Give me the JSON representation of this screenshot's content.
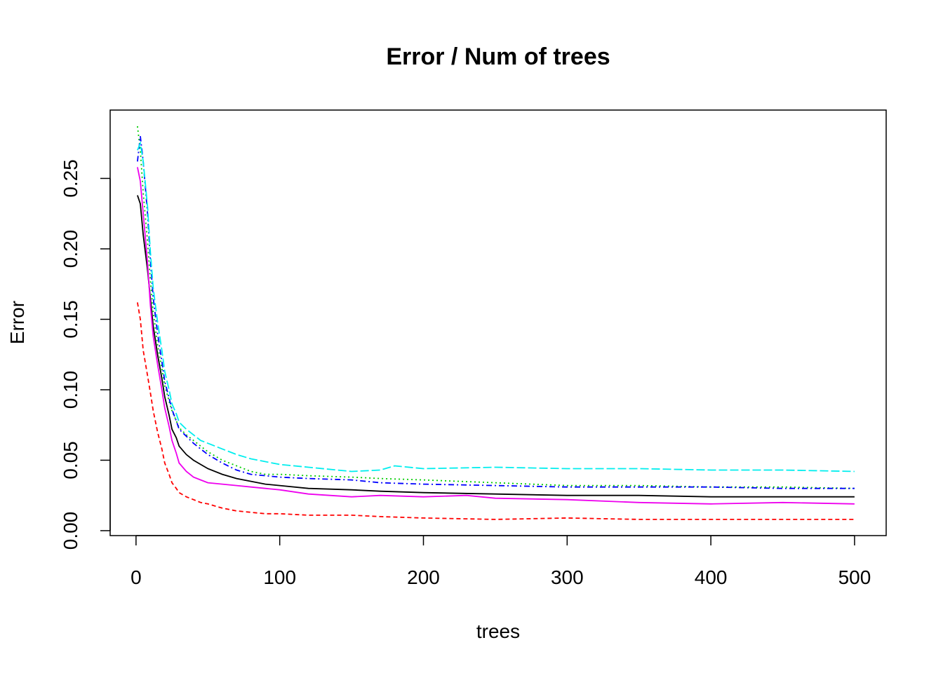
{
  "chart_data": {
    "type": "line",
    "title": "Error / Num of trees",
    "xlabel": "trees",
    "ylabel": "Error",
    "xlim": [
      -18,
      522
    ],
    "ylim": [
      -0.0035,
      0.2985
    ],
    "x_ticks": [
      0,
      100,
      200,
      300,
      400,
      500
    ],
    "y_ticks": [
      0.0,
      0.05,
      0.1,
      0.15,
      0.2,
      0.25
    ],
    "x_tick_labels": [
      "0",
      "100",
      "200",
      "300",
      "400",
      "500"
    ],
    "y_tick_labels": [
      "0.00",
      "0.05",
      "0.10",
      "0.15",
      "0.20",
      "0.25"
    ],
    "grid": false,
    "legend": "none",
    "series": [
      {
        "color": "#000000",
        "dash": "",
        "points": [
          [
            1,
            0.238
          ],
          [
            3,
            0.232
          ],
          [
            5,
            0.21
          ],
          [
            8,
            0.185
          ],
          [
            10,
            0.165
          ],
          [
            12,
            0.145
          ],
          [
            15,
            0.125
          ],
          [
            18,
            0.108
          ],
          [
            20,
            0.095
          ],
          [
            23,
            0.082
          ],
          [
            25,
            0.072
          ],
          [
            28,
            0.066
          ],
          [
            30,
            0.06
          ],
          [
            35,
            0.054
          ],
          [
            40,
            0.05
          ],
          [
            45,
            0.047
          ],
          [
            50,
            0.044
          ],
          [
            60,
            0.04
          ],
          [
            70,
            0.037
          ],
          [
            80,
            0.035
          ],
          [
            90,
            0.033
          ],
          [
            100,
            0.032
          ],
          [
            120,
            0.03
          ],
          [
            150,
            0.029
          ],
          [
            170,
            0.028
          ],
          [
            200,
            0.027
          ],
          [
            250,
            0.026
          ],
          [
            300,
            0.025
          ],
          [
            350,
            0.025
          ],
          [
            400,
            0.024
          ],
          [
            450,
            0.024
          ],
          [
            500,
            0.024
          ]
        ]
      },
      {
        "color": "#ff0000",
        "dash": "6,4",
        "points": [
          [
            1,
            0.162
          ],
          [
            3,
            0.15
          ],
          [
            5,
            0.128
          ],
          [
            8,
            0.11
          ],
          [
            10,
            0.098
          ],
          [
            12,
            0.085
          ],
          [
            15,
            0.07
          ],
          [
            18,
            0.058
          ],
          [
            20,
            0.048
          ],
          [
            23,
            0.04
          ],
          [
            25,
            0.034
          ],
          [
            28,
            0.03
          ],
          [
            30,
            0.027
          ],
          [
            35,
            0.024
          ],
          [
            40,
            0.022
          ],
          [
            45,
            0.02
          ],
          [
            50,
            0.019
          ],
          [
            60,
            0.016
          ],
          [
            70,
            0.014
          ],
          [
            80,
            0.013
          ],
          [
            90,
            0.012
          ],
          [
            100,
            0.012
          ],
          [
            120,
            0.011
          ],
          [
            150,
            0.011
          ],
          [
            170,
            0.01
          ],
          [
            200,
            0.009
          ],
          [
            250,
            0.008
          ],
          [
            300,
            0.009
          ],
          [
            350,
            0.008
          ],
          [
            400,
            0.008
          ],
          [
            450,
            0.008
          ],
          [
            500,
            0.008
          ]
        ]
      },
      {
        "color": "#00cd00",
        "dash": "2,4",
        "points": [
          [
            1,
            0.287
          ],
          [
            3,
            0.27
          ],
          [
            5,
            0.24
          ],
          [
            8,
            0.205
          ],
          [
            10,
            0.178
          ],
          [
            12,
            0.155
          ],
          [
            15,
            0.132
          ],
          [
            18,
            0.115
          ],
          [
            20,
            0.103
          ],
          [
            23,
            0.092
          ],
          [
            25,
            0.085
          ],
          [
            28,
            0.078
          ],
          [
            30,
            0.073
          ],
          [
            35,
            0.068
          ],
          [
            40,
            0.064
          ],
          [
            45,
            0.06
          ],
          [
            50,
            0.056
          ],
          [
            60,
            0.05
          ],
          [
            70,
            0.046
          ],
          [
            80,
            0.042
          ],
          [
            90,
            0.04
          ],
          [
            100,
            0.04
          ],
          [
            120,
            0.039
          ],
          [
            150,
            0.038
          ],
          [
            170,
            0.037
          ],
          [
            200,
            0.036
          ],
          [
            250,
            0.034
          ],
          [
            300,
            0.032
          ],
          [
            350,
            0.032
          ],
          [
            400,
            0.031
          ],
          [
            450,
            0.031
          ],
          [
            500,
            0.03
          ]
        ]
      },
      {
        "color": "#0000ff",
        "dash": "8,4,2,4",
        "points": [
          [
            1,
            0.262
          ],
          [
            3,
            0.28
          ],
          [
            5,
            0.262
          ],
          [
            8,
            0.225
          ],
          [
            10,
            0.192
          ],
          [
            12,
            0.165
          ],
          [
            15,
            0.14
          ],
          [
            18,
            0.12
          ],
          [
            20,
            0.106
          ],
          [
            23,
            0.094
          ],
          [
            25,
            0.086
          ],
          [
            28,
            0.078
          ],
          [
            30,
            0.072
          ],
          [
            35,
            0.067
          ],
          [
            40,
            0.062
          ],
          [
            45,
            0.058
          ],
          [
            50,
            0.054
          ],
          [
            60,
            0.048
          ],
          [
            70,
            0.043
          ],
          [
            80,
            0.04
          ],
          [
            90,
            0.039
          ],
          [
            100,
            0.038
          ],
          [
            120,
            0.037
          ],
          [
            150,
            0.036
          ],
          [
            170,
            0.034
          ],
          [
            200,
            0.033
          ],
          [
            250,
            0.032
          ],
          [
            300,
            0.031
          ],
          [
            350,
            0.031
          ],
          [
            400,
            0.031
          ],
          [
            450,
            0.03
          ],
          [
            500,
            0.03
          ]
        ]
      },
      {
        "color": "#00eeee",
        "dash": "12,4",
        "points": [
          [
            1,
            0.27
          ],
          [
            3,
            0.275
          ],
          [
            5,
            0.262
          ],
          [
            8,
            0.23
          ],
          [
            10,
            0.198
          ],
          [
            12,
            0.172
          ],
          [
            15,
            0.148
          ],
          [
            18,
            0.128
          ],
          [
            20,
            0.113
          ],
          [
            23,
            0.1
          ],
          [
            25,
            0.09
          ],
          [
            28,
            0.083
          ],
          [
            30,
            0.077
          ],
          [
            35,
            0.072
          ],
          [
            40,
            0.068
          ],
          [
            45,
            0.064
          ],
          [
            50,
            0.062
          ],
          [
            60,
            0.058
          ],
          [
            70,
            0.054
          ],
          [
            80,
            0.051
          ],
          [
            90,
            0.049
          ],
          [
            100,
            0.047
          ],
          [
            120,
            0.045
          ],
          [
            150,
            0.042
          ],
          [
            170,
            0.043
          ],
          [
            180,
            0.046
          ],
          [
            200,
            0.044
          ],
          [
            250,
            0.045
          ],
          [
            300,
            0.044
          ],
          [
            350,
            0.044
          ],
          [
            400,
            0.043
          ],
          [
            450,
            0.043
          ],
          [
            500,
            0.042
          ]
        ]
      },
      {
        "color": "#ee00ee",
        "dash": "",
        "points": [
          [
            1,
            0.258
          ],
          [
            3,
            0.248
          ],
          [
            5,
            0.225
          ],
          [
            8,
            0.19
          ],
          [
            10,
            0.16
          ],
          [
            12,
            0.138
          ],
          [
            15,
            0.118
          ],
          [
            18,
            0.1
          ],
          [
            20,
            0.087
          ],
          [
            23,
            0.074
          ],
          [
            25,
            0.064
          ],
          [
            28,
            0.055
          ],
          [
            30,
            0.048
          ],
          [
            35,
            0.042
          ],
          [
            40,
            0.038
          ],
          [
            45,
            0.036
          ],
          [
            50,
            0.034
          ],
          [
            60,
            0.033
          ],
          [
            70,
            0.032
          ],
          [
            80,
            0.031
          ],
          [
            90,
            0.03
          ],
          [
            100,
            0.029
          ],
          [
            120,
            0.026
          ],
          [
            150,
            0.024
          ],
          [
            170,
            0.025
          ],
          [
            200,
            0.024
          ],
          [
            230,
            0.025
          ],
          [
            250,
            0.023
          ],
          [
            300,
            0.022
          ],
          [
            350,
            0.02
          ],
          [
            400,
            0.019
          ],
          [
            450,
            0.02
          ],
          [
            500,
            0.019
          ]
        ]
      }
    ]
  }
}
